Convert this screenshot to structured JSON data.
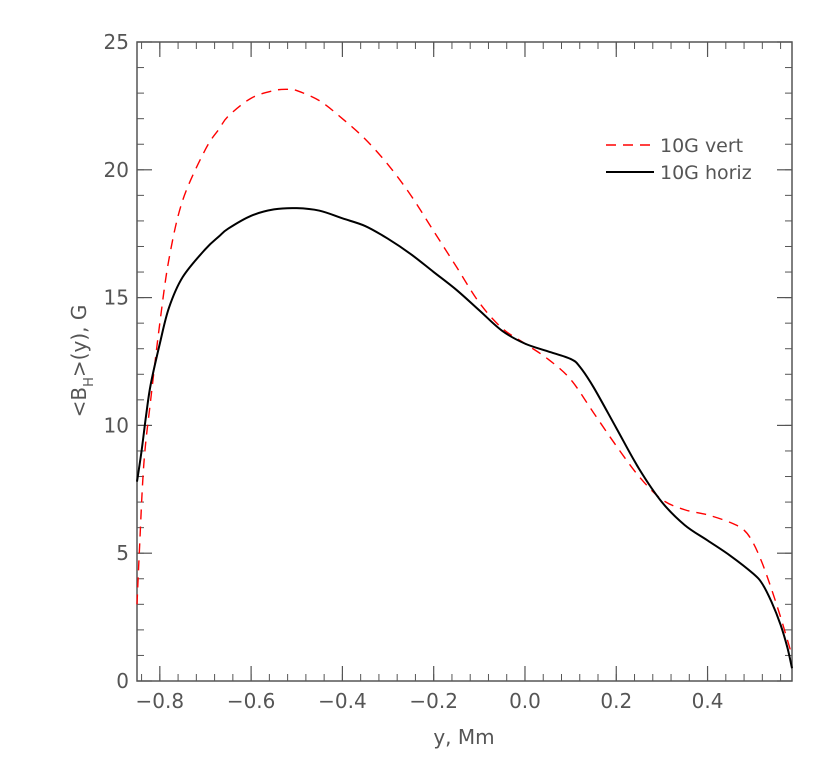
{
  "chart_data": {
    "type": "line",
    "title": "",
    "xlabel": "y, Mm",
    "ylabel_main": "<B",
    "ylabel_sub": "H",
    "ylabel_rest": ">(y), G",
    "xlim": [
      -0.85,
      0.585
    ],
    "ylim": [
      0,
      25
    ],
    "x_ticks": [
      -0.8,
      -0.6,
      -0.4,
      -0.2,
      0.0,
      0.2,
      0.4
    ],
    "x_tick_labels": [
      "−0.8",
      "−0.6",
      "−0.4",
      "−0.2",
      "0.0",
      "0.2",
      "0.4"
    ],
    "y_ticks": [
      0,
      5,
      10,
      15,
      20,
      25
    ],
    "y_tick_labels": [
      "0",
      "5",
      "10",
      "15",
      "20",
      "25"
    ],
    "x_minor_step": 0.04,
    "y_minor_step": 1,
    "grid": false,
    "legend_position": "top-right",
    "series": [
      {
        "name": "10G vert",
        "color": "#ff0000",
        "dash": "dashed",
        "x": [
          -0.85,
          -0.845,
          -0.835,
          -0.82,
          -0.8,
          -0.78,
          -0.75,
          -0.7,
          -0.67,
          -0.65,
          -0.6,
          -0.55,
          -0.52,
          -0.5,
          -0.45,
          -0.4,
          -0.35,
          -0.3,
          -0.25,
          -0.2,
          -0.15,
          -0.1,
          -0.05,
          0.0,
          0.05,
          0.1,
          0.15,
          0.2,
          0.25,
          0.3,
          0.35,
          0.4,
          0.45,
          0.48,
          0.5,
          0.52,
          0.54,
          0.56,
          0.575,
          0.585
        ],
        "y": [
          3.0,
          5.0,
          8.5,
          11.0,
          14.0,
          16.5,
          18.8,
          20.8,
          21.6,
          22.1,
          22.8,
          23.1,
          23.15,
          23.1,
          22.7,
          22.0,
          21.2,
          20.2,
          19.0,
          17.6,
          16.2,
          14.8,
          13.8,
          13.2,
          12.6,
          11.8,
          10.5,
          9.2,
          8.0,
          7.1,
          6.7,
          6.5,
          6.2,
          5.9,
          5.4,
          4.6,
          3.6,
          2.5,
          1.6,
          1.0
        ]
      },
      {
        "name": "10G horiz",
        "color": "#000000",
        "dash": "solid",
        "x": [
          -0.85,
          -0.84,
          -0.83,
          -0.82,
          -0.8,
          -0.78,
          -0.75,
          -0.7,
          -0.67,
          -0.65,
          -0.6,
          -0.55,
          -0.5,
          -0.45,
          -0.4,
          -0.35,
          -0.3,
          -0.25,
          -0.2,
          -0.15,
          -0.1,
          -0.05,
          0.0,
          0.05,
          0.1,
          0.12,
          0.15,
          0.2,
          0.25,
          0.3,
          0.35,
          0.4,
          0.45,
          0.5,
          0.52,
          0.54,
          0.56,
          0.575,
          0.585
        ],
        "y": [
          7.8,
          9.0,
          10.4,
          11.6,
          13.2,
          14.6,
          15.8,
          16.9,
          17.4,
          17.7,
          18.2,
          18.45,
          18.5,
          18.4,
          18.1,
          17.8,
          17.3,
          16.7,
          16.0,
          15.3,
          14.5,
          13.7,
          13.2,
          12.9,
          12.6,
          12.3,
          11.5,
          9.9,
          8.3,
          7.0,
          6.1,
          5.5,
          4.9,
          4.2,
          3.8,
          3.1,
          2.2,
          1.3,
          0.5
        ]
      }
    ]
  }
}
